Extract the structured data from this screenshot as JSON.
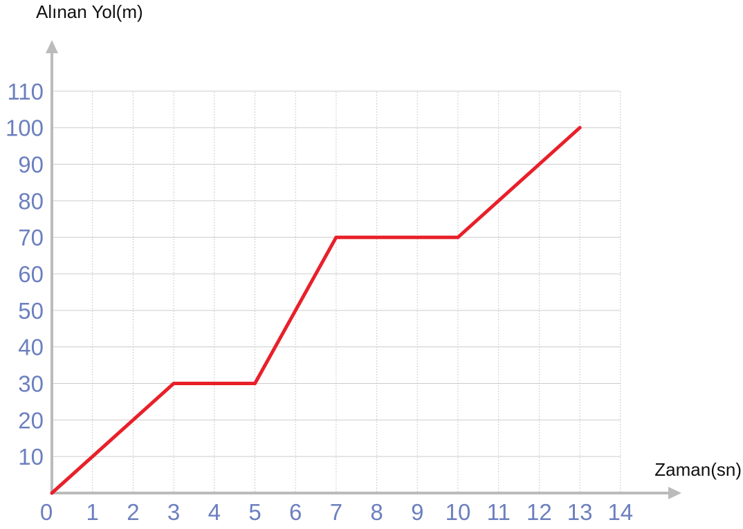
{
  "chart_data": {
    "type": "line",
    "title": "",
    "xlabel": "Zaman(sn)",
    "ylabel": "Alınan Yol(m)",
    "xlim": [
      0,
      14
    ],
    "ylim": [
      0,
      110
    ],
    "x_ticks": [
      "0",
      "1",
      "2",
      "3",
      "4",
      "5",
      "6",
      "7",
      "8",
      "9",
      "10",
      "11",
      "12",
      "13",
      "14"
    ],
    "y_ticks": [
      "10",
      "20",
      "30",
      "40",
      "50",
      "60",
      "70",
      "80",
      "90",
      "100",
      "110"
    ],
    "grid": true,
    "series": [
      {
        "x": [
          0,
          3,
          5,
          7,
          10,
          13
        ],
        "y": [
          0,
          30,
          30,
          70,
          70,
          100
        ]
      }
    ],
    "colors": {
      "line": "#e8202a",
      "tick_labels": "#6b7fbf",
      "axis": "#bbbbbb",
      "grid": "#cccccc"
    }
  }
}
